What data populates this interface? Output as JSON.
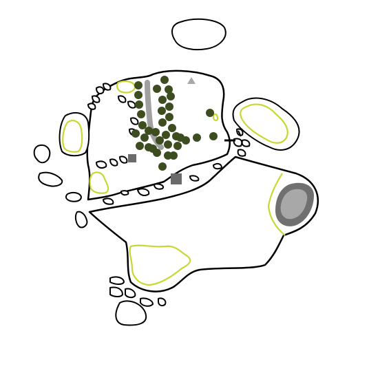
{
  "map": {
    "colors": {
      "background": "#ffffff",
      "land": "#ffffff",
      "coast": "#000000",
      "meadow_outline": "#c8d832",
      "tree": "#3d4d1f",
      "road": "#a0a0a0",
      "building": "#6b6b6b",
      "water_outer": "#707070",
      "water_inner": "#a8a8a8",
      "marker": "#a8a8a8"
    },
    "icons": {
      "tree": "dark-green-circle",
      "building": "grey-square",
      "marker": "grey-triangle"
    },
    "feature_counts": {
      "trees": 36,
      "buildings": 2,
      "markers": 1,
      "lakes": 1
    }
  }
}
